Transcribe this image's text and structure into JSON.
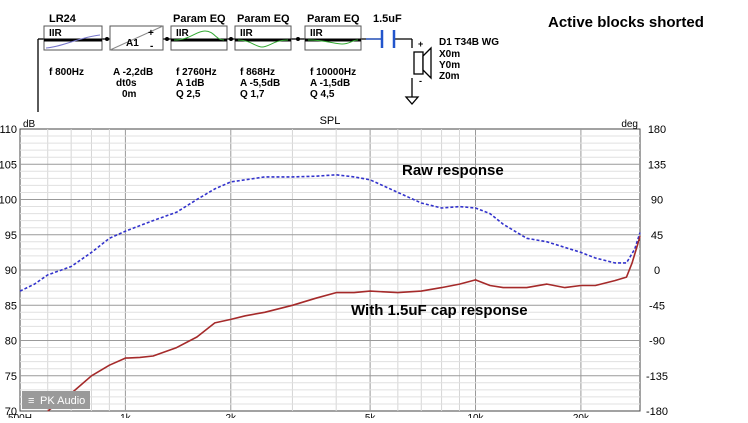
{
  "header": {
    "note": "Active blocks shorted",
    "blocks": [
      {
        "title": "LR24",
        "label": "IIR",
        "params": [
          "f  800Hz"
        ]
      },
      {
        "title": "",
        "label": "A1",
        "params": [
          "A -2,2dB",
          "dt0s",
          "0m"
        ]
      },
      {
        "title": "Param EQ",
        "label": "IIR",
        "params": [
          "f  2760Hz",
          "A 1dB",
          "Q 2,5"
        ]
      },
      {
        "title": "Param EQ",
        "label": "IIR",
        "params": [
          "f  868Hz",
          "A -5,5dB",
          "Q 1,7"
        ]
      },
      {
        "title": "Param EQ",
        "label": "IIR",
        "params": [
          "f  10000Hz",
          "A -1,5dB",
          "Q 4,5"
        ]
      }
    ],
    "capacitor": {
      "label": "1.5uF"
    },
    "driver": {
      "lines": [
        "D1 T34B WG",
        "X0m",
        "Y0m",
        "Z0m"
      ],
      "plus": "+",
      "minus": "-"
    },
    "a1_plus": "+",
    "a1_minus": "-"
  },
  "chart_data": {
    "type": "line",
    "title": "SPL",
    "ylabel_left": "dB",
    "ylabel_right": "deg",
    "x_scale": "log",
    "ylim": [
      70,
      110
    ],
    "ylim_right": [
      -180,
      180
    ],
    "y_ticks": [
      70,
      75,
      80,
      85,
      90,
      95,
      100,
      105,
      110
    ],
    "y_ticks_right": [
      -180,
      -135,
      -90,
      -45,
      0,
      45,
      90,
      135,
      180
    ],
    "x_ticks": [
      500,
      1000,
      2000,
      5000,
      10000,
      20000
    ],
    "x_tick_labels": [
      "500H",
      "1k",
      "2k",
      "5k",
      "10k",
      "20k"
    ],
    "xlim": [
      500,
      29500
    ],
    "grid": true,
    "watermark": "PK Audio",
    "annotations": [
      {
        "text": "Raw response"
      },
      {
        "text": "With 1.5uF cap response"
      }
    ],
    "series": [
      {
        "color": "#3333cc",
        "style": "dashed",
        "x": [
          500,
          550,
          600,
          700,
          800,
          900,
          1000,
          1100,
          1200,
          1400,
          1600,
          1800,
          2000,
          2200,
          2500,
          3000,
          3500,
          4000,
          4500,
          5000,
          6000,
          7000,
          8000,
          9000,
          10000,
          11000,
          12000,
          14000,
          16000,
          18000,
          20000,
          22000,
          25000,
          27000,
          28500,
          29500
        ],
        "values": [
          87.0,
          88.0,
          89.3,
          90.5,
          92.5,
          94.5,
          95.5,
          96.3,
          97.0,
          98.2,
          100.0,
          101.5,
          102.5,
          102.8,
          103.2,
          103.2,
          103.3,
          103.5,
          103.2,
          102.8,
          101.0,
          99.5,
          98.8,
          99.0,
          98.8,
          98.0,
          96.5,
          94.5,
          94.0,
          93.2,
          92.5,
          91.7,
          91.0,
          91.0,
          93.0,
          95.3
        ]
      },
      {
        "color": "#a52a2a",
        "style": "solid",
        "x": [
          600,
          700,
          800,
          900,
          1000,
          1100,
          1200,
          1400,
          1600,
          1800,
          2000,
          2200,
          2500,
          3000,
          3500,
          4000,
          4500,
          5000,
          6000,
          7000,
          8000,
          9000,
          10000,
          11000,
          12000,
          14000,
          16000,
          18000,
          20000,
          22000,
          25000,
          27000,
          28000,
          29000,
          29500
        ],
        "values": [
          70.0,
          72.5,
          75.0,
          76.5,
          77.5,
          77.6,
          77.8,
          79.0,
          80.5,
          82.5,
          83.0,
          83.5,
          84.0,
          85.0,
          86.0,
          86.8,
          86.8,
          87.0,
          86.8,
          87.0,
          87.5,
          88.0,
          88.6,
          87.8,
          87.5,
          87.5,
          88.0,
          87.5,
          87.8,
          87.8,
          88.5,
          89.0,
          91.0,
          93.5,
          94.8
        ]
      }
    ]
  }
}
